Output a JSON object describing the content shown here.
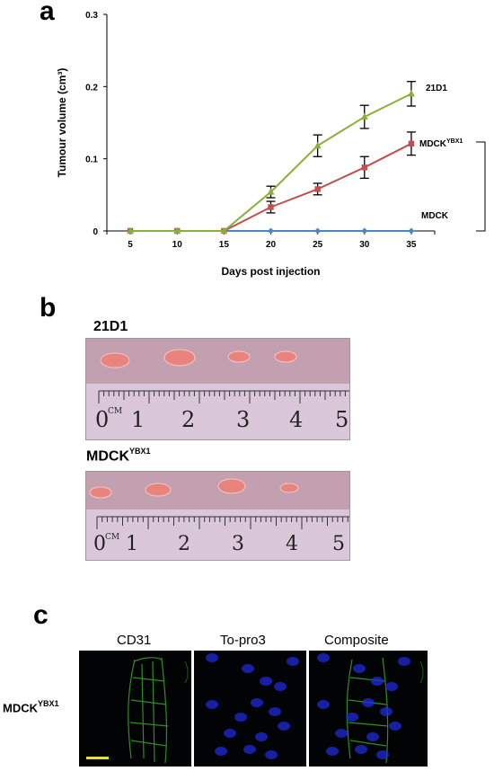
{
  "panels": {
    "a": {
      "letter": "a"
    },
    "b": {
      "letter": "b",
      "title_21d1": "21D1",
      "title_mdck_base": "MDCK",
      "title_mdck_sup": "YBX1",
      "ruler_top_labels": [
        "0",
        "CM",
        "1",
        "2",
        "3",
        "4",
        "5"
      ],
      "ruler_bottom_labels": [
        "0",
        "CM",
        "1",
        "2",
        "3",
        "4",
        "5"
      ]
    },
    "c": {
      "letter": "c",
      "headers": [
        "CD31",
        "To-pro3",
        "Composite"
      ],
      "row_label_base": "MDCK",
      "row_label_sup": "YBX1"
    }
  },
  "chart_data": {
    "type": "line",
    "title": "",
    "xlabel": "Days post injection",
    "ylabel": "Tumour volume (cm³)",
    "x": [
      5,
      10,
      15,
      20,
      25,
      30,
      35
    ],
    "ylim": [
      0,
      0.3
    ],
    "yticks": [
      "0",
      "0.1",
      "0.2",
      "0.3"
    ],
    "grid": false,
    "series": [
      {
        "name": "21D1",
        "label_base": "21D1",
        "label_sup": "",
        "color": "#8ab03a",
        "marker": "triangle",
        "values": [
          0,
          0,
          0,
          0.054,
          0.118,
          0.158,
          0.19
        ],
        "errors": [
          0,
          0,
          0,
          0.008,
          0.015,
          0.016,
          0.017
        ]
      },
      {
        "name": "MDCKYBX1",
        "label_base": "MDCK",
        "label_sup": "YBX1",
        "color": "#c0504d",
        "marker": "square",
        "values": [
          0,
          0,
          0,
          0.033,
          0.058,
          0.088,
          0.121
        ],
        "errors": [
          0,
          0,
          0,
          0.008,
          0.008,
          0.015,
          0.016
        ]
      },
      {
        "name": "MDCK",
        "label_base": "MDCK",
        "label_sup": "",
        "color": "#4a86c8",
        "marker": "diamond",
        "values": [
          0,
          0,
          0,
          0,
          0,
          0,
          0
        ],
        "errors": [
          0,
          0,
          0,
          0,
          0,
          0,
          0
        ]
      }
    ],
    "significance": "**"
  },
  "colors": {
    "ruler_bg": "#d7c4d6",
    "photo_bg": "#c2a0b0",
    "tumour": "#e88a86",
    "green_stain": "#3aa52a",
    "blue_stain": "#1f2bd8",
    "scale_bar": "#e5e03a"
  }
}
